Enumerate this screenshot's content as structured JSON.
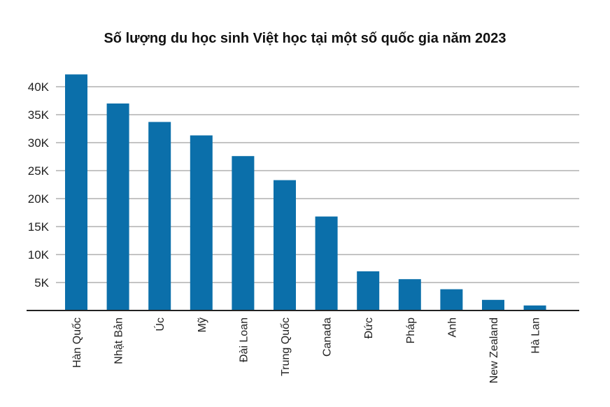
{
  "chart_data": {
    "type": "bar",
    "title": "Số lượng du học sinh Việt học tại một số quốc gia năm 2023",
    "categories": [
      "Hàn Quốc",
      "Nhật Bản",
      "Úc",
      "Mỹ",
      "Đài Loan",
      "Trung Quốc",
      "Canada",
      "Đức",
      "Pháp",
      "Anh",
      "New Zealand",
      "Hà Lan"
    ],
    "values": [
      42200,
      37000,
      33700,
      31300,
      27600,
      23300,
      16800,
      7000,
      5600,
      3800,
      1900,
      900
    ],
    "ylim": [
      0,
      42000
    ],
    "yticks": [
      5000,
      10000,
      15000,
      20000,
      25000,
      30000,
      35000,
      40000
    ],
    "ytick_labels": [
      "5K",
      "10K",
      "15K",
      "20K",
      "25K",
      "30K",
      "35K",
      "40K"
    ],
    "grid": true,
    "bar_color": "#0b6faa"
  }
}
